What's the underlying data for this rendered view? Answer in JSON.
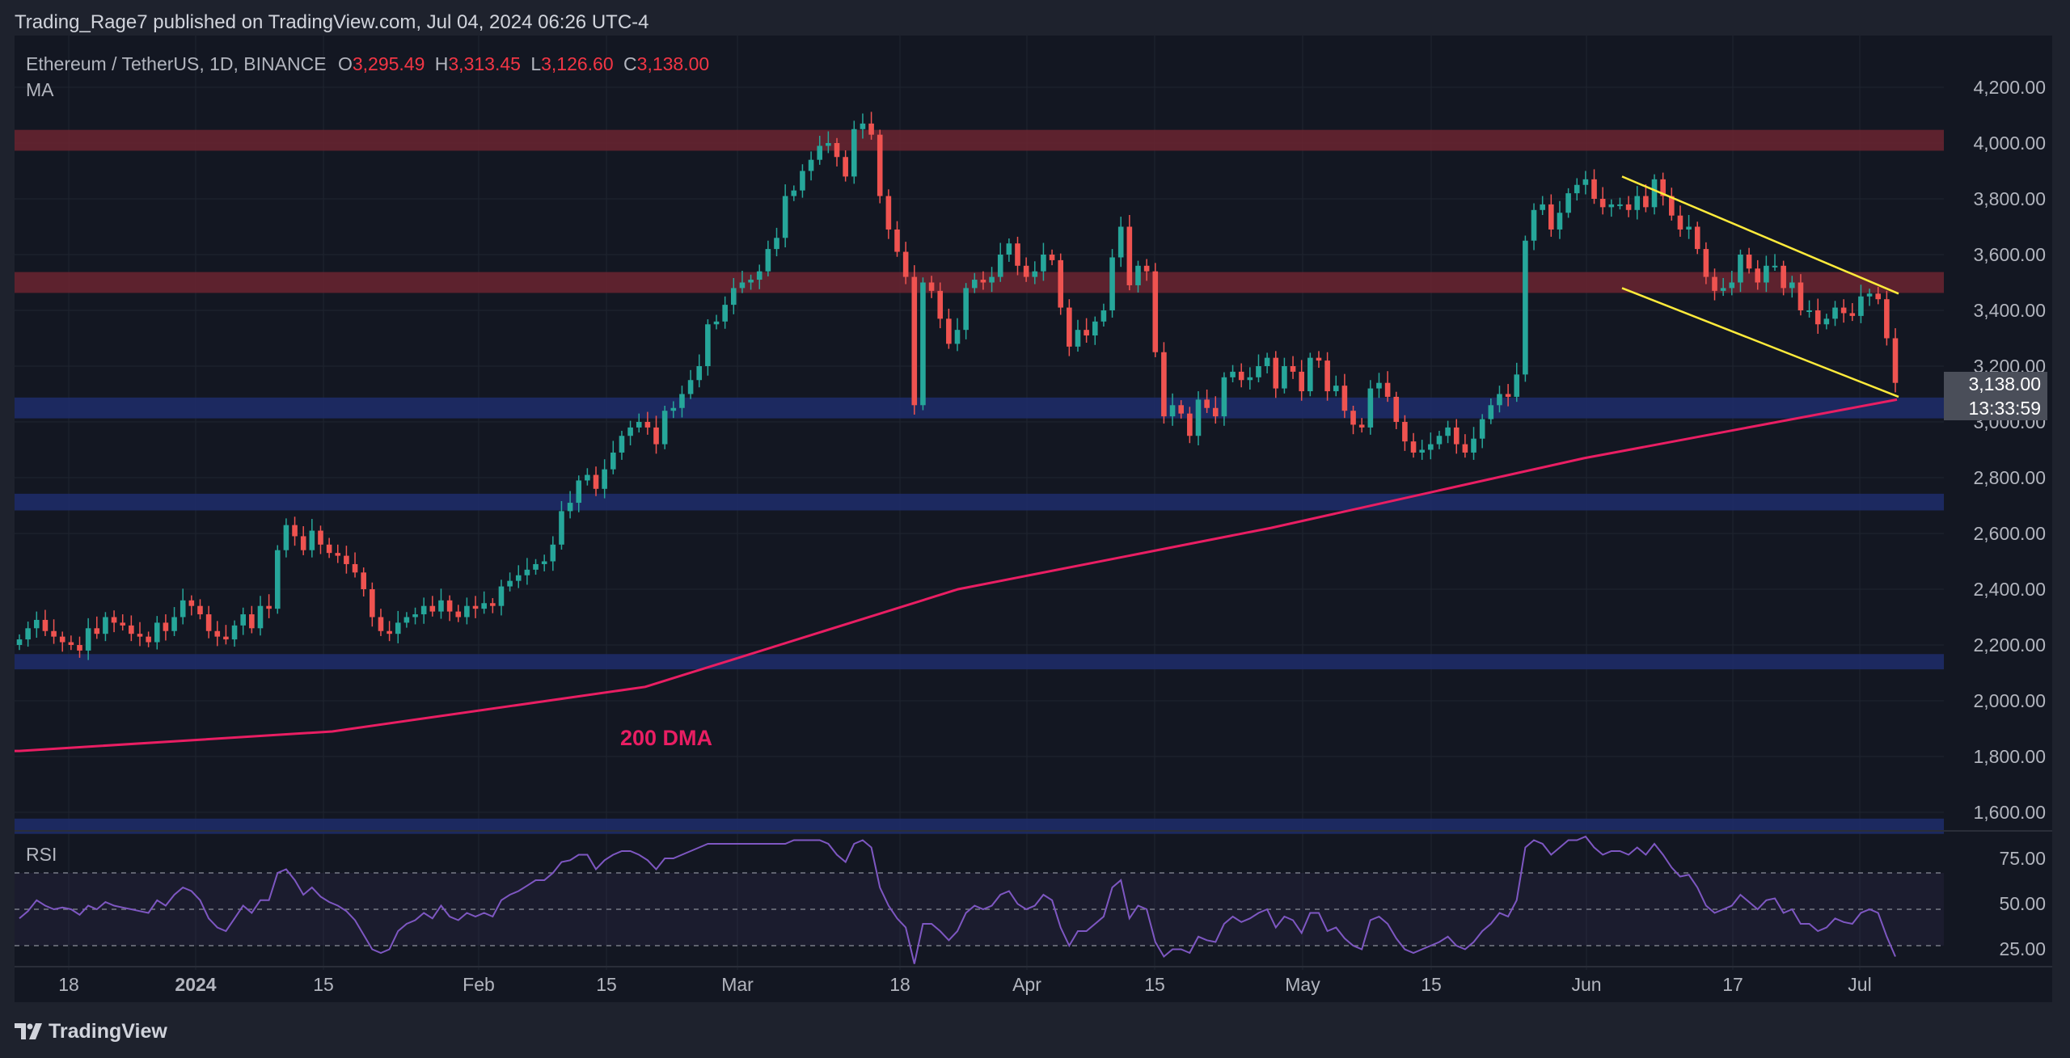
{
  "header": {
    "published_by": "Trading_Rage7 published on TradingView.com, Jul 04, 2024 06:26 UTC-4"
  },
  "legend": {
    "symbol": "Ethereum / TetherUS, 1D, BINANCE",
    "open_label": "O",
    "open": "3,295.49",
    "high_label": "H",
    "high": "3,313.45",
    "low_label": "L",
    "low": "3,126.60",
    "close_label": "C",
    "close": "3,138.00",
    "indicator": "MA"
  },
  "price_badge": {
    "price": "3,138.00",
    "countdown": "13:33:59"
  },
  "annotations": {
    "dma_label": "200 DMA"
  },
  "rsi": {
    "label": "RSI"
  },
  "footer": {
    "brand": "TradingView"
  },
  "colors": {
    "background": "#131722",
    "up": "#26a69a",
    "down": "#ef5350",
    "resistance_zone": "#6b2430",
    "support_zone": "#1f2d6b",
    "ma": "#e91e63",
    "channel": "#ffeb3b",
    "rsi_line": "#7e57c2"
  },
  "chart_data": {
    "type": "candlestick",
    "price_axis": {
      "min": 1550,
      "max": 4350,
      "ticks": [
        "4,200.00",
        "4,000.00",
        "3,800.00",
        "3,600.00",
        "3,400.00",
        "3,200.00",
        "3,000.00",
        "2,800.00",
        "2,600.00",
        "2,400.00",
        "2,200.00",
        "2,000.00",
        "1,800.00",
        "1,600.00"
      ]
    },
    "time_axis": {
      "labels": [
        "18",
        "2024",
        "15",
        "Feb",
        "15",
        "Mar",
        "18",
        "Apr",
        "15",
        "May",
        "15",
        "Jun",
        "17",
        "Jul"
      ]
    },
    "close_prices_approx": [
      2220,
      2260,
      2290,
      2250,
      2230,
      2210,
      2200,
      2180,
      2260,
      2240,
      2300,
      2280,
      2270,
      2240,
      2230,
      2210,
      2280,
      2250,
      2300,
      2360,
      2340,
      2310,
      2250,
      2230,
      2220,
      2270,
      2310,
      2260,
      2340,
      2330,
      2540,
      2630,
      2590,
      2540,
      2610,
      2560,
      2530,
      2520,
      2490,
      2460,
      2400,
      2300,
      2250,
      2240,
      2280,
      2300,
      2310,
      2340,
      2320,
      2360,
      2320,
      2300,
      2340,
      2330,
      2350,
      2340,
      2410,
      2430,
      2450,
      2470,
      2490,
      2500,
      2560,
      2680,
      2710,
      2790,
      2810,
      2760,
      2830,
      2890,
      2950,
      2980,
      3000,
      2980,
      2920,
      3040,
      3050,
      3100,
      3150,
      3200,
      3350,
      3360,
      3420,
      3480,
      3500,
      3510,
      3540,
      3620,
      3660,
      3810,
      3830,
      3900,
      3940,
      3990,
      4000,
      3950,
      3880,
      4050,
      4070,
      4030,
      3810,
      3690,
      3610,
      3520,
      3060,
      3500,
      3470,
      3370,
      3280,
      3330,
      3480,
      3510,
      3500,
      3520,
      3600,
      3640,
      3560,
      3520,
      3540,
      3600,
      3580,
      3410,
      3270,
      3330,
      3310,
      3360,
      3400,
      3590,
      3700,
      3490,
      3560,
      3540,
      3250,
      3020,
      3060,
      3030,
      2950,
      3080,
      3050,
      3020,
      3160,
      3180,
      3150,
      3160,
      3200,
      3230,
      3120,
      3200,
      3180,
      3110,
      3230,
      3220,
      3110,
      3130,
      3040,
      2990,
      2980,
      3120,
      3140,
      3090,
      3000,
      2930,
      2890,
      2900,
      2920,
      2950,
      2980,
      2920,
      2890,
      2940,
      3010,
      3060,
      3100,
      3090,
      3170,
      3650,
      3760,
      3780,
      3690,
      3750,
      3820,
      3850,
      3870,
      3800,
      3770,
      3780,
      3780,
      3760,
      3810,
      3770,
      3870,
      3810,
      3740,
      3690,
      3700,
      3620,
      3520,
      3470,
      3480,
      3500,
      3600,
      3550,
      3500,
      3560,
      3560,
      3480,
      3500,
      3400,
      3400,
      3350,
      3370,
      3410,
      3390,
      3380,
      3450,
      3460,
      3440,
      3300,
      3140
    ],
    "ma_200": [
      {
        "x_label": "start",
        "value": 1820
      },
      {
        "x_label": "Feb",
        "value": 1890
      },
      {
        "x_label": "Mar",
        "value": 2050
      },
      {
        "x_label": "Apr",
        "value": 2400
      },
      {
        "x_label": "May",
        "value": 2620
      },
      {
        "x_label": "Jun",
        "value": 2870
      },
      {
        "x_label": "Jul",
        "value": 3080
      }
    ],
    "zones": [
      {
        "type": "resistance",
        "low": 3990,
        "high": 4030
      },
      {
        "type": "resistance",
        "low": 3480,
        "high": 3520
      },
      {
        "type": "support",
        "low": 3030,
        "high": 3070
      },
      {
        "type": "support",
        "low": 2700,
        "high": 2725
      },
      {
        "type": "support",
        "low": 2130,
        "high": 2150
      },
      {
        "type": "support",
        "low": 1540,
        "high": 1560
      }
    ],
    "channel": {
      "upper": [
        {
          "value": 3880
        },
        {
          "value": 3460
        }
      ],
      "lower": [
        {
          "value": 3480
        },
        {
          "value": 3090
        }
      ]
    },
    "rsi_axis": {
      "ticks": [
        "75.00",
        "50.00",
        "25.00"
      ],
      "overbought": 70,
      "oversold": 30
    },
    "rsi_values_approx": [
      45,
      49,
      55,
      52,
      50,
      51,
      50,
      47,
      52,
      50,
      54,
      52,
      51,
      50,
      49,
      48,
      55,
      52,
      58,
      62,
      60,
      55,
      45,
      40,
      38,
      45,
      52,
      48,
      55,
      55,
      70,
      72,
      66,
      58,
      62,
      57,
      54,
      52,
      49,
      44,
      36,
      28,
      26,
      28,
      38,
      42,
      44,
      48,
      45,
      52,
      46,
      44,
      48,
      46,
      48,
      46,
      55,
      58,
      60,
      63,
      66,
      66,
      70,
      76,
      77,
      80,
      80,
      72,
      77,
      80,
      82,
      82,
      80,
      77,
      72,
      78,
      78,
      80,
      82,
      84,
      86,
      86,
      86,
      86,
      86,
      86,
      86,
      86,
      86,
      86,
      88,
      88,
      88,
      88,
      86,
      80,
      76,
      86,
      88,
      84,
      62,
      52,
      45,
      40,
      20,
      42,
      42,
      38,
      33,
      38,
      48,
      52,
      50,
      52,
      58,
      60,
      53,
      50,
      52,
      58,
      55,
      40,
      30,
      38,
      38,
      42,
      46,
      62,
      66,
      45,
      52,
      50,
      32,
      24,
      28,
      28,
      26,
      35,
      33,
      32,
      42,
      46,
      43,
      45,
      48,
      50,
      40,
      46,
      44,
      37,
      48,
      48,
      38,
      40,
      34,
      30,
      28,
      44,
      46,
      42,
      34,
      28,
      26,
      28,
      30,
      32,
      35,
      30,
      28,
      32,
      38,
      42,
      48,
      46,
      55,
      84,
      88,
      86,
      80,
      84,
      88,
      88,
      90,
      84,
      80,
      82,
      82,
      80,
      84,
      80,
      86,
      80,
      73,
      68,
      69,
      62,
      52,
      48,
      50,
      52,
      58,
      54,
      50,
      55,
      56,
      48,
      50,
      42,
      42,
      38,
      40,
      45,
      43,
      42,
      48,
      50,
      48,
      35,
      24
    ]
  }
}
